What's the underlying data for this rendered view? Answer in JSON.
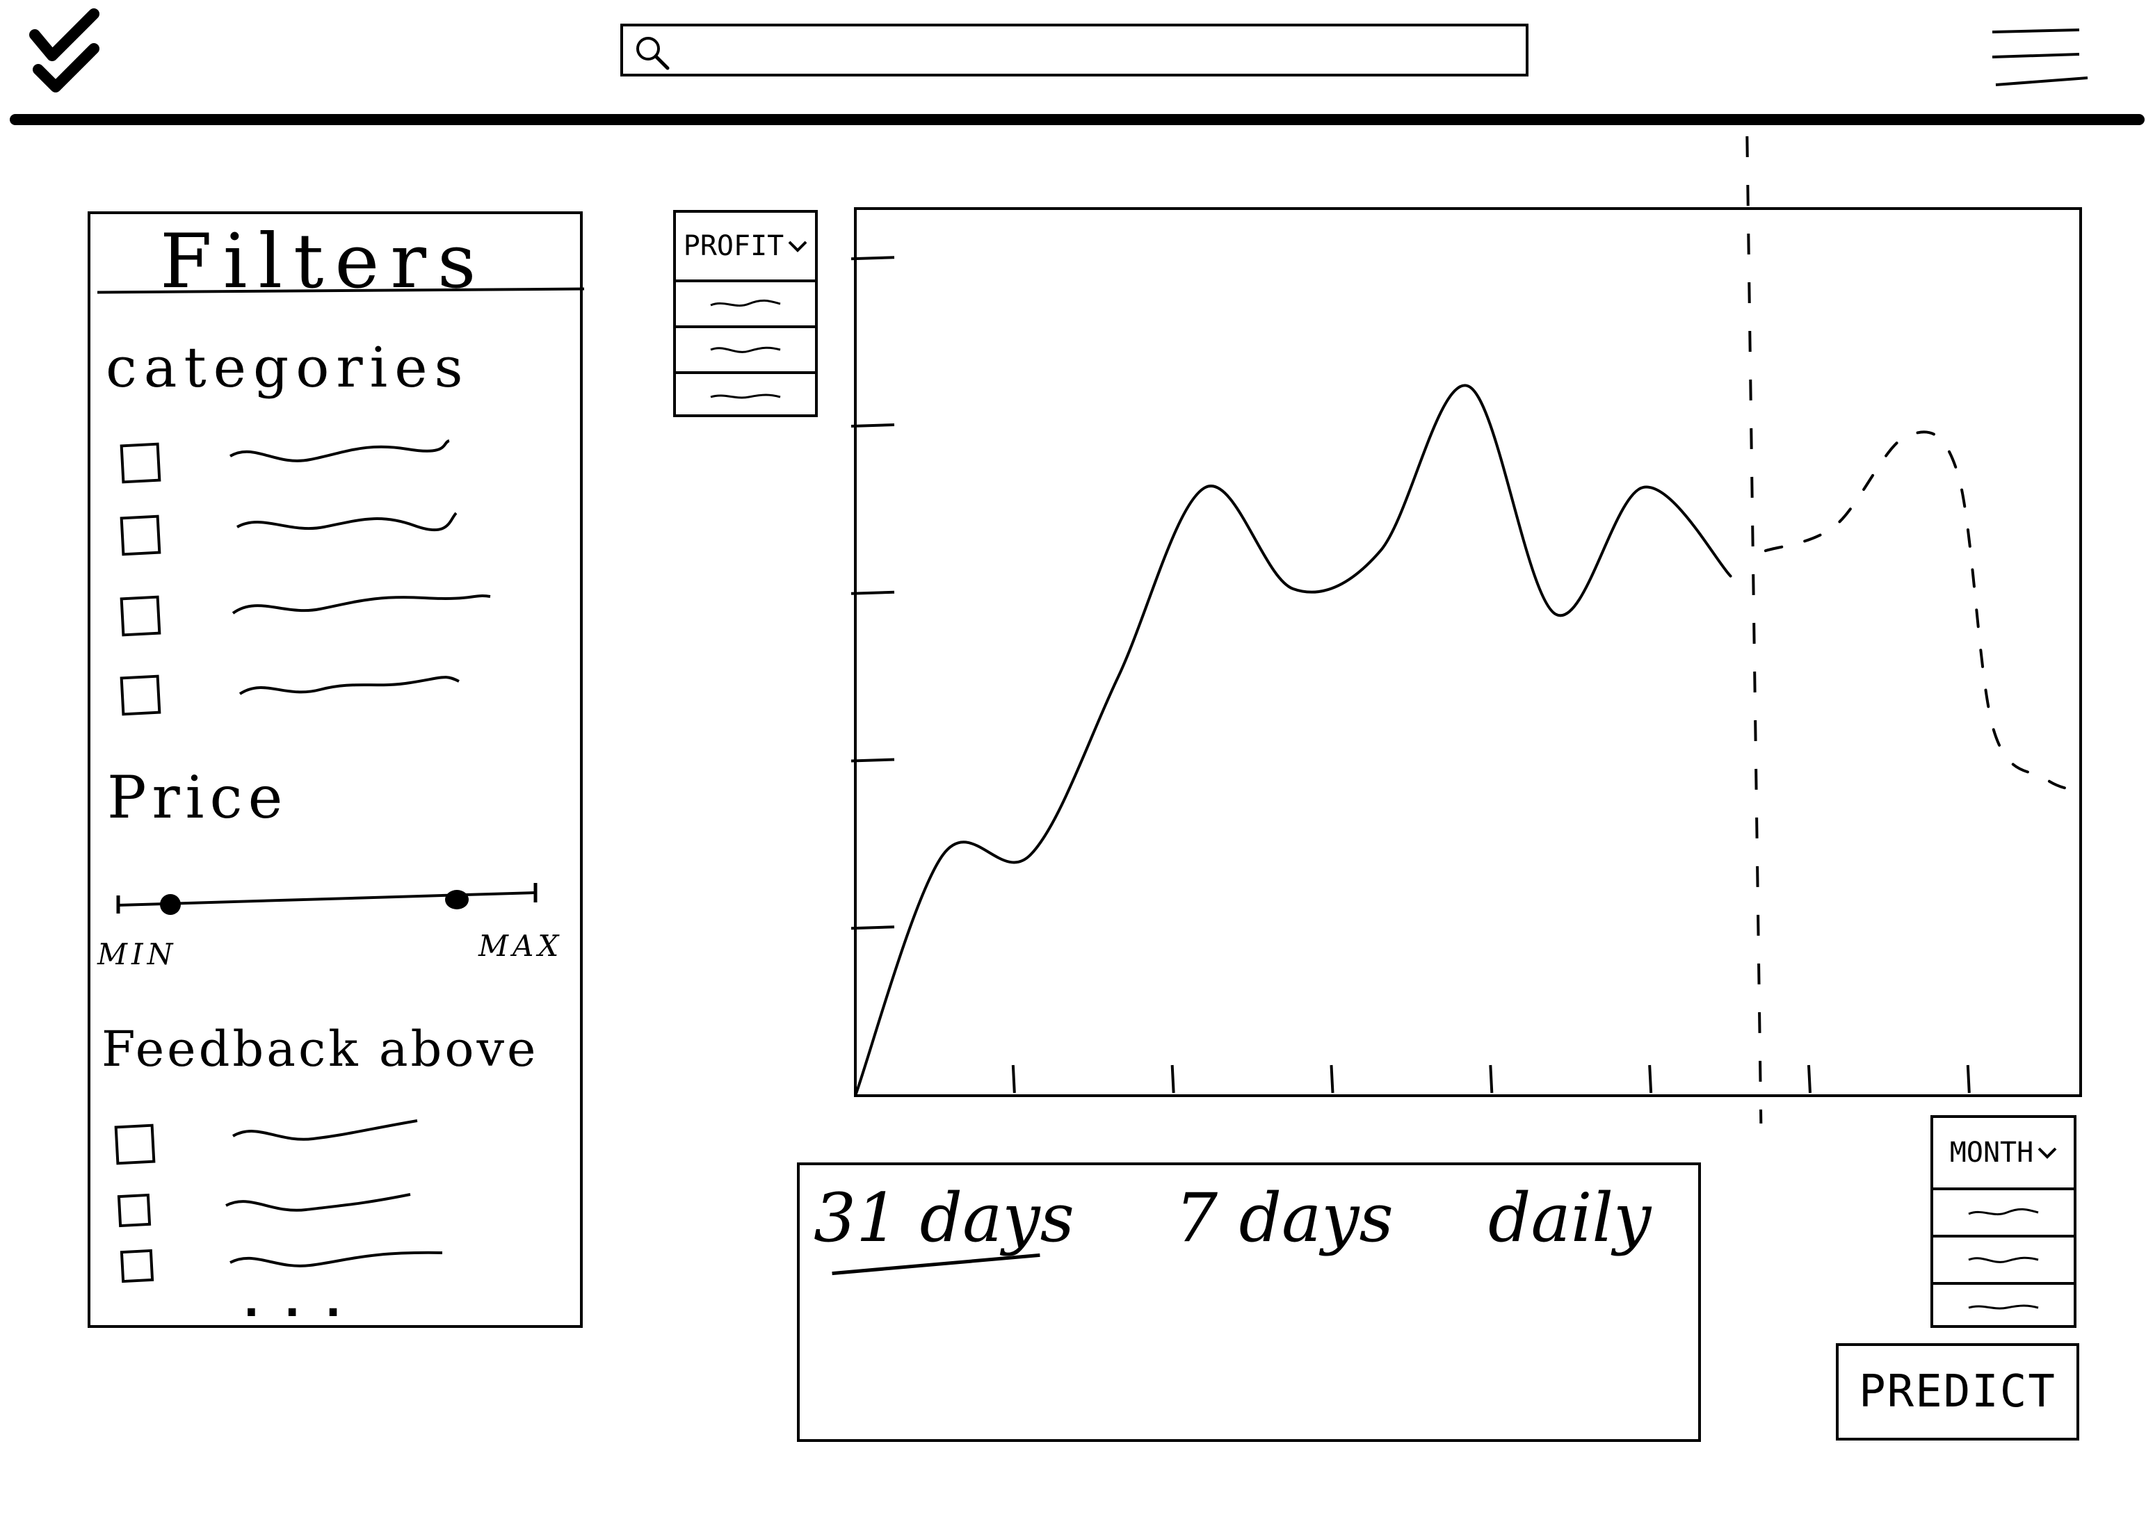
{
  "header": {
    "logo_icon": "checkmark-logo-icon",
    "search": {
      "placeholder": "",
      "value": "",
      "icon": "search-icon"
    },
    "menu_icon": "hamburger-menu-icon"
  },
  "filters": {
    "title": "Filters",
    "categories": {
      "heading": "categories",
      "items": [
        {
          "label": "",
          "checked": false
        },
        {
          "label": "",
          "checked": false
        },
        {
          "label": "",
          "checked": false
        },
        {
          "label": "",
          "checked": false
        }
      ]
    },
    "price": {
      "heading": "Price",
      "min_label": "MIN",
      "max_label": "MAX"
    },
    "feedback": {
      "heading": "Feedback above",
      "items": [
        {
          "label": "",
          "checked": false
        },
        {
          "label": "",
          "checked": false
        },
        {
          "label": "",
          "checked": false
        }
      ],
      "more": "..."
    }
  },
  "metric_dropdown": {
    "selected": "PROFIT",
    "options": [
      "",
      "",
      ""
    ]
  },
  "period_dropdown": {
    "selected": "MONTH",
    "options": [
      "",
      "",
      ""
    ]
  },
  "range_tabs": [
    "31 days",
    "7 days",
    "daily"
  ],
  "active_range_tab": "31 days",
  "predict_button": {
    "label": "PREDICT"
  },
  "chart_data": {
    "type": "line",
    "title": "",
    "xlabel": "",
    "ylabel": "",
    "x_ticks": 7,
    "y_ticks": 5,
    "series": [
      {
        "kind": "actual",
        "style": "solid",
        "x": [
          0,
          0.5,
          1,
          1.5,
          2,
          2.5,
          3,
          3.5,
          4,
          4.5,
          5
        ],
        "y": [
          0,
          1.9,
          1.9,
          3.3,
          4.8,
          4.0,
          4.3,
          5.6,
          3.8,
          4.8,
          4.1
        ]
      },
      {
        "kind": "forecast",
        "style": "dashed",
        "x": [
          5.2,
          5.6,
          6.0,
          6.3,
          6.5,
          6.8,
          7.0
        ],
        "y": [
          4.3,
          4.5,
          5.2,
          4.9,
          2.9,
          2.5,
          2.4
        ]
      }
    ],
    "forecast_divider_x": 5.15,
    "xlim": [
      0,
      7
    ],
    "ylim": [
      0,
      7
    ],
    "grid": false,
    "legend": "none"
  }
}
